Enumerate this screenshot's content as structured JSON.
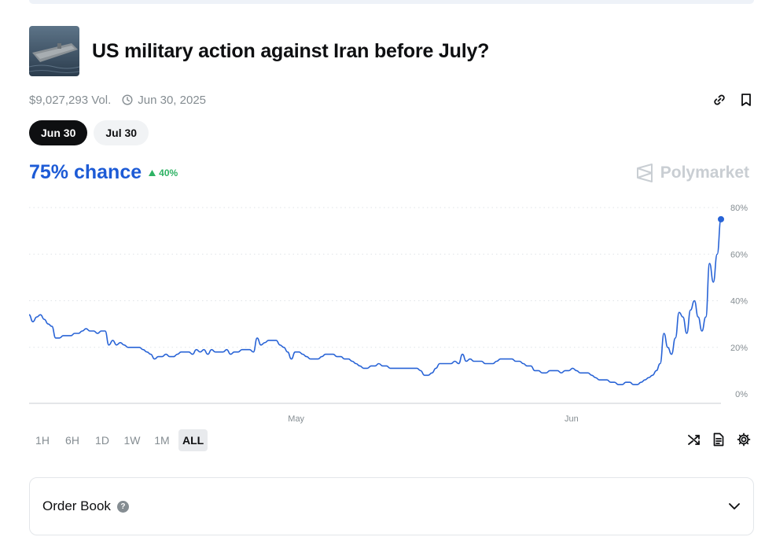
{
  "market": {
    "title": "US military action against Iran before July?",
    "thumbnail_icon": "aircraft-carrier-image",
    "volume": "$9,027,293 Vol.",
    "end_date": "Jun 30, 2025"
  },
  "actions": {
    "link_icon": "link-icon",
    "bookmark_icon": "bookmark-icon"
  },
  "date_tabs": [
    {
      "label": "Jun 30",
      "active": true
    },
    {
      "label": "Jul 30",
      "active": false
    }
  ],
  "probability": {
    "chance": "75% chance",
    "delta": "40%",
    "delta_direction": "up"
  },
  "brand": {
    "name": "Polymarket"
  },
  "colors": {
    "line": "#2863d6",
    "accent": "#1d5bd6",
    "positive": "#2eb264"
  },
  "chart_data": {
    "type": "line",
    "title": "",
    "xlabel": "",
    "ylabel": "",
    "y_ticks": [
      "80%",
      "60%",
      "40%",
      "20%",
      "0%"
    ],
    "y_tick_values": [
      80,
      60,
      40,
      20,
      0
    ],
    "ylim": [
      0,
      80
    ],
    "x_ticks": [
      "May",
      "Jun"
    ],
    "x_tick_positions": [
      0.386,
      0.784
    ],
    "grid": true,
    "series": [
      {
        "values": [
          34,
          31,
          33,
          34,
          32,
          30,
          29,
          24,
          24,
          25,
          25,
          25,
          26,
          26,
          27,
          28,
          27,
          27,
          26,
          27,
          27,
          21,
          23,
          21,
          22,
          21,
          20,
          20,
          20,
          20,
          19,
          18,
          17,
          15,
          16,
          16,
          17,
          16,
          16,
          17,
          18,
          18,
          18,
          17,
          19,
          18,
          19,
          17,
          19,
          18,
          18,
          18,
          19,
          17,
          18,
          18,
          19,
          19,
          19,
          18,
          24,
          21,
          22,
          23,
          23,
          23,
          21,
          20,
          18,
          15,
          18,
          18,
          17,
          16,
          15,
          15,
          15,
          16,
          17,
          17,
          17,
          16,
          16,
          15,
          15,
          14,
          13,
          12,
          11,
          11,
          12,
          12,
          13,
          12,
          12,
          11,
          11,
          11,
          11,
          11,
          11,
          11,
          11,
          10,
          8,
          8,
          9,
          11,
          13,
          13,
          13,
          13,
          14,
          13,
          17,
          14,
          15,
          14,
          14,
          14,
          13,
          13,
          13,
          14,
          15,
          15,
          15,
          15,
          14,
          14,
          13,
          12,
          12,
          10,
          10,
          9,
          9,
          10,
          10,
          10,
          9,
          10,
          10,
          11,
          10,
          9,
          9,
          9,
          8,
          7,
          6,
          6,
          6,
          5,
          5,
          4,
          4,
          5,
          5,
          4,
          4,
          5,
          6,
          7,
          8,
          10,
          13,
          26,
          20,
          17,
          24,
          35,
          33,
          26,
          36,
          40,
          33,
          27,
          33,
          56,
          48,
          60,
          75
        ]
      }
    ],
    "last_value": 75
  },
  "time_ranges": [
    {
      "label": "1H",
      "active": false
    },
    {
      "label": "6H",
      "active": false
    },
    {
      "label": "1D",
      "active": false
    },
    {
      "label": "1W",
      "active": false
    },
    {
      "label": "1M",
      "active": false
    },
    {
      "label": "ALL",
      "active": true
    }
  ],
  "tools": {
    "shuffle_icon": "shuffle-icon",
    "document_icon": "document-icon",
    "settings_icon": "gear-icon"
  },
  "order_book": {
    "label": "Order Book",
    "help": "?",
    "chevron_icon": "chevron-down-icon"
  }
}
